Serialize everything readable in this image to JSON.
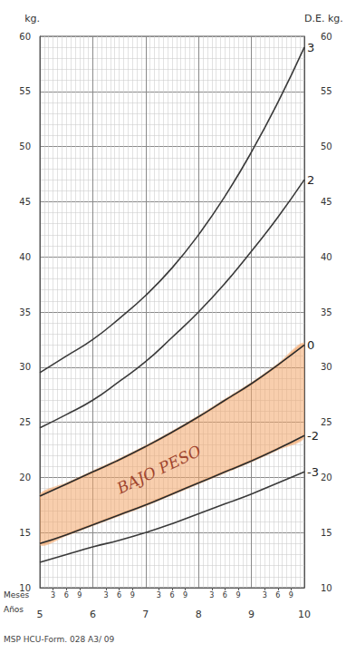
{
  "chart_data": {
    "type": "line",
    "ylabel": "kg.",
    "y2label": "D.E. kg.",
    "xlabel": "Años",
    "x2label": "Meses",
    "footer": "MSP HCU-Form. 028 A3/ 09",
    "x": [
      5,
      5.5,
      6,
      6.5,
      7,
      7.5,
      8,
      8.5,
      9,
      9.5,
      10
    ],
    "xlim": [
      5,
      10
    ],
    "xticks": [
      5,
      6,
      7,
      8,
      9,
      10
    ],
    "x2ticks": [
      {
        "value": 5.25,
        "label": "3"
      },
      {
        "value": 5.5,
        "label": "6"
      },
      {
        "value": 5.75,
        "label": "9"
      },
      {
        "value": 6.25,
        "label": "3"
      },
      {
        "value": 6.5,
        "label": "6"
      },
      {
        "value": 6.75,
        "label": "9"
      },
      {
        "value": 7.25,
        "label": "3"
      },
      {
        "value": 7.5,
        "label": "6"
      },
      {
        "value": 7.75,
        "label": "9"
      },
      {
        "value": 8.25,
        "label": "3"
      },
      {
        "value": 8.5,
        "label": "6"
      },
      {
        "value": 8.75,
        "label": "9"
      },
      {
        "value": 9.25,
        "label": "3"
      },
      {
        "value": 9.5,
        "label": "6"
      },
      {
        "value": 9.75,
        "label": "9"
      }
    ],
    "ylim": [
      10,
      60
    ],
    "yticks": [
      10,
      15,
      20,
      25,
      30,
      35,
      40,
      45,
      50,
      55,
      60
    ],
    "y2lim": [
      10,
      60
    ],
    "y2ticks": [
      10,
      15,
      20,
      25,
      30,
      35,
      40,
      45,
      50,
      55,
      60
    ],
    "grid": true,
    "series": [
      {
        "name": "3",
        "color": "#3a3a3a",
        "values": [
          29.5,
          31,
          32.5,
          34.4,
          36.5,
          39,
          42,
          45.5,
          49.5,
          54,
          59
        ]
      },
      {
        "name": "2",
        "color": "#3a3a3a",
        "values": [
          24.5,
          25.7,
          27,
          28.7,
          30.5,
          32.7,
          35,
          37.6,
          40.5,
          43.6,
          47
        ]
      },
      {
        "name": "0",
        "color": "#2a2a2a",
        "values": [
          18.3,
          19.4,
          20.5,
          21.6,
          22.8,
          24.1,
          25.5,
          27,
          28.5,
          30.2,
          32
        ]
      },
      {
        "name": "-2",
        "color": "#2a2a2a",
        "values": [
          14,
          14.8,
          15.7,
          16.6,
          17.5,
          18.5,
          19.5,
          20.5,
          21.5,
          22.6,
          23.8
        ]
      },
      {
        "name": "-3",
        "color": "#3a3a3a",
        "values": [
          12.3,
          13,
          13.7,
          14.3,
          15,
          15.8,
          16.7,
          17.6,
          18.5,
          19.5,
          20.5
        ]
      }
    ],
    "annotations": [
      {
        "text": "BAJO PESO",
        "between": [
          "0",
          "-2"
        ],
        "color": "#f2a66a",
        "text_color": "#a0452e"
      }
    ]
  }
}
